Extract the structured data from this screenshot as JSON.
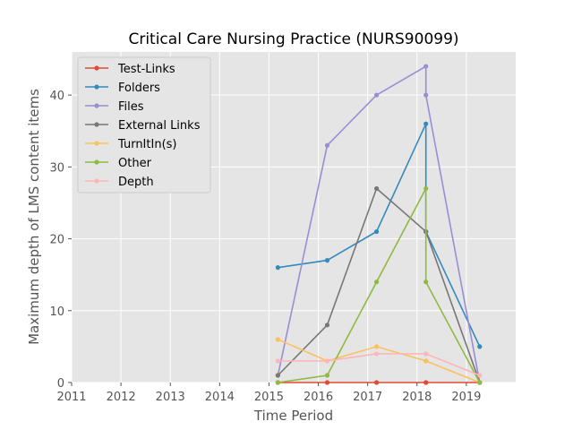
{
  "chart_data": {
    "type": "line",
    "title": "Critical Care Nursing Practice (NURS90099)",
    "xlabel": "Time Period",
    "ylabel": "Maximum depth of LMS content items",
    "xlim": [
      2011,
      2020
    ],
    "ylim": [
      0,
      46
    ],
    "xticks": [
      "2011",
      "2012",
      "2013",
      "2014",
      "2015",
      "2016",
      "2017",
      "2018",
      "2019"
    ],
    "yticks": [
      "0",
      "10",
      "20",
      "30",
      "40"
    ],
    "grid": true,
    "legend_position": "upper-left",
    "series": [
      {
        "name": "Test-Links",
        "color": "#E24A33",
        "points": [
          [
            2015.18,
            0
          ],
          [
            2016.18,
            0
          ],
          [
            2017.18,
            0
          ],
          [
            2018.18,
            0
          ],
          [
            2018.18,
            0
          ],
          [
            2019.27,
            0
          ]
        ]
      },
      {
        "name": "Folders",
        "color": "#348ABD",
        "points": [
          [
            2015.18,
            16
          ],
          [
            2016.18,
            17
          ],
          [
            2017.18,
            21
          ],
          [
            2018.18,
            36
          ],
          [
            2018.18,
            21
          ],
          [
            2019.27,
            5
          ]
        ]
      },
      {
        "name": "Files",
        "color": "#988ED5",
        "points": [
          [
            2015.18,
            1
          ],
          [
            2016.18,
            33
          ],
          [
            2017.18,
            40
          ],
          [
            2018.18,
            44
          ],
          [
            2018.18,
            40
          ],
          [
            2019.27,
            0
          ]
        ]
      },
      {
        "name": "External Links",
        "color": "#777777",
        "points": [
          [
            2015.18,
            1
          ],
          [
            2016.18,
            8
          ],
          [
            2017.18,
            27
          ],
          [
            2018.18,
            21
          ],
          [
            2018.18,
            21
          ],
          [
            2019.27,
            0
          ]
        ]
      },
      {
        "name": "TurnItIn(s)",
        "color": "#FBC15E",
        "points": [
          [
            2015.18,
            6
          ],
          [
            2016.18,
            3
          ],
          [
            2017.18,
            5
          ],
          [
            2018.18,
            3
          ],
          [
            2018.18,
            3
          ],
          [
            2019.27,
            0
          ]
        ]
      },
      {
        "name": "Other",
        "color": "#8EBA42",
        "points": [
          [
            2015.18,
            0
          ],
          [
            2016.18,
            1
          ],
          [
            2017.18,
            14
          ],
          [
            2018.18,
            27
          ],
          [
            2018.18,
            14
          ],
          [
            2019.27,
            0
          ]
        ]
      },
      {
        "name": "Depth",
        "color": "#FFB5B8",
        "points": [
          [
            2015.18,
            3
          ],
          [
            2016.18,
            3
          ],
          [
            2017.18,
            4
          ],
          [
            2018.18,
            4
          ],
          [
            2018.18,
            4
          ],
          [
            2019.27,
            1
          ]
        ]
      }
    ]
  }
}
